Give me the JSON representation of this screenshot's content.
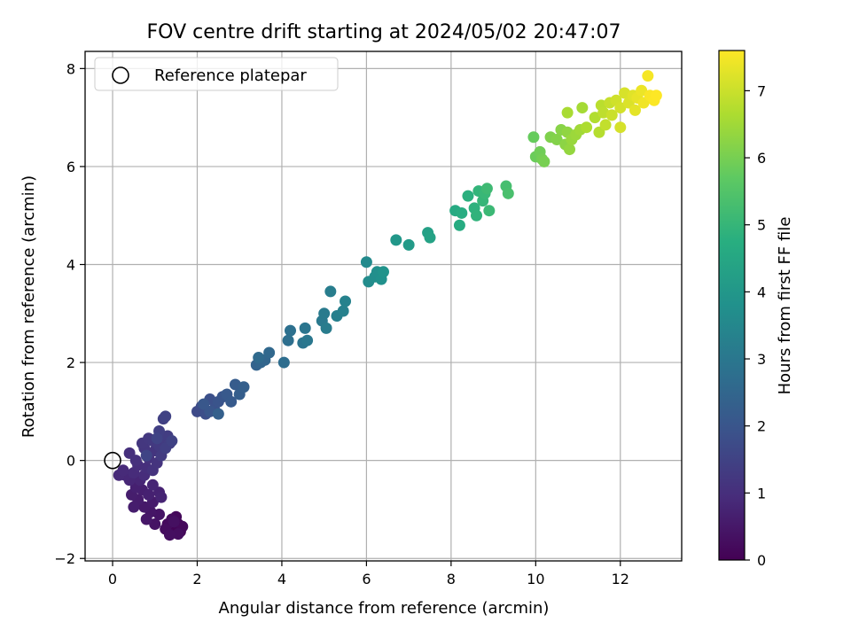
{
  "chart_data": {
    "type": "scatter",
    "title": "FOV centre drift starting at 2024/05/02 20:47:07",
    "xlabel": "Angular distance from reference (arcmin)",
    "ylabel": "Rotation from reference (arcmin)",
    "xlim": [
      -0.65,
      13.45
    ],
    "ylim": [
      -2.05,
      8.35
    ],
    "xticks": [
      0,
      2,
      4,
      6,
      8,
      10,
      12
    ],
    "yticks": [
      -2,
      0,
      2,
      4,
      6,
      8
    ],
    "grid": true,
    "legend": {
      "placement": "upper-left",
      "entries": [
        "Reference platepar"
      ]
    },
    "reference_point": {
      "x": 0,
      "y": 0
    },
    "colorbar": {
      "label": "Hours from first FF file",
      "colormap": "viridis",
      "range": [
        0,
        7.6
      ],
      "ticks": [
        0,
        1,
        2,
        3,
        4,
        5,
        6,
        7
      ]
    },
    "points": [
      {
        "x": 1.45,
        "y": -1.4,
        "c": 0.05
      },
      {
        "x": 1.55,
        "y": -1.3,
        "c": 0.1
      },
      {
        "x": 1.6,
        "y": -1.45,
        "c": 0.1
      },
      {
        "x": 1.35,
        "y": -1.5,
        "c": 0.12
      },
      {
        "x": 1.5,
        "y": -1.15,
        "c": 0.15
      },
      {
        "x": 1.65,
        "y": -1.35,
        "c": 0.18
      },
      {
        "x": 1.3,
        "y": -1.3,
        "c": 0.2
      },
      {
        "x": 1.4,
        "y": -1.2,
        "c": 0.22
      },
      {
        "x": 1.25,
        "y": -1.4,
        "c": 0.25
      },
      {
        "x": 1.55,
        "y": -1.5,
        "c": 0.28
      },
      {
        "x": 1.35,
        "y": -1.52,
        "c": 0.3
      },
      {
        "x": 1.45,
        "y": -1.25,
        "c": 0.32
      },
      {
        "x": 1.0,
        "y": -1.3,
        "c": 0.38
      },
      {
        "x": 1.1,
        "y": -1.1,
        "c": 0.42
      },
      {
        "x": 0.9,
        "y": -1.05,
        "c": 0.45
      },
      {
        "x": 0.8,
        "y": -1.2,
        "c": 0.48
      },
      {
        "x": 0.75,
        "y": -0.95,
        "c": 0.52
      },
      {
        "x": 0.95,
        "y": -0.85,
        "c": 0.55
      },
      {
        "x": 0.6,
        "y": -0.8,
        "c": 0.58
      },
      {
        "x": 0.5,
        "y": -0.95,
        "c": 0.6
      },
      {
        "x": 0.45,
        "y": -0.7,
        "c": 0.62
      },
      {
        "x": 0.7,
        "y": -0.6,
        "c": 0.65
      },
      {
        "x": 0.55,
        "y": -0.55,
        "c": 0.68
      },
      {
        "x": 0.85,
        "y": -0.7,
        "c": 0.7
      },
      {
        "x": 1.1,
        "y": -0.65,
        "c": 0.72
      },
      {
        "x": 1.15,
        "y": -0.75,
        "c": 0.75
      },
      {
        "x": 0.95,
        "y": -0.5,
        "c": 0.78
      },
      {
        "x": 0.65,
        "y": -0.4,
        "c": 0.8
      },
      {
        "x": 0.4,
        "y": -0.4,
        "c": 0.82
      },
      {
        "x": 0.3,
        "y": -0.3,
        "c": 0.85
      },
      {
        "x": 0.15,
        "y": -0.3,
        "c": 0.88
      },
      {
        "x": 0.25,
        "y": -0.2,
        "c": 0.9
      },
      {
        "x": 0.5,
        "y": -0.25,
        "c": 0.92
      },
      {
        "x": 0.75,
        "y": -0.3,
        "c": 0.95
      },
      {
        "x": 0.6,
        "y": -0.1,
        "c": 0.98
      },
      {
        "x": 0.8,
        "y": -0.15,
        "c": 1.0
      },
      {
        "x": 0.4,
        "y": 0.15,
        "c": 1.02
      },
      {
        "x": 0.55,
        "y": 0.0,
        "c": 1.05
      },
      {
        "x": 0.85,
        "y": 0.05,
        "c": 1.08
      },
      {
        "x": 0.95,
        "y": -0.2,
        "c": 1.1
      },
      {
        "x": 1.05,
        "y": -0.05,
        "c": 1.12
      },
      {
        "x": 1.0,
        "y": 0.2,
        "c": 1.15
      },
      {
        "x": 0.75,
        "y": 0.25,
        "c": 1.18
      },
      {
        "x": 0.7,
        "y": 0.35,
        "c": 1.2
      },
      {
        "x": 0.85,
        "y": 0.45,
        "c": 1.22
      },
      {
        "x": 0.95,
        "y": 0.4,
        "c": 1.25
      },
      {
        "x": 1.1,
        "y": 0.3,
        "c": 1.28
      },
      {
        "x": 1.15,
        "y": 0.1,
        "c": 1.3
      },
      {
        "x": 1.2,
        "y": 0.45,
        "c": 1.33
      },
      {
        "x": 1.3,
        "y": 0.5,
        "c": 1.36
      },
      {
        "x": 1.35,
        "y": 0.35,
        "c": 1.38
      },
      {
        "x": 1.25,
        "y": 0.25,
        "c": 1.4
      },
      {
        "x": 1.1,
        "y": 0.6,
        "c": 1.42
      },
      {
        "x": 1.2,
        "y": 0.85,
        "c": 1.45
      },
      {
        "x": 1.25,
        "y": 0.9,
        "c": 1.48
      },
      {
        "x": 1.4,
        "y": 0.4,
        "c": 1.5
      },
      {
        "x": 1.05,
        "y": 0.45,
        "c": 1.52
      },
      {
        "x": 0.8,
        "y": 0.1,
        "c": 1.55
      },
      {
        "x": 2.0,
        "y": 1.0,
        "c": 1.7
      },
      {
        "x": 2.1,
        "y": 1.1,
        "c": 1.75
      },
      {
        "x": 2.2,
        "y": 0.95,
        "c": 1.8
      },
      {
        "x": 2.3,
        "y": 1.25,
        "c": 1.85
      },
      {
        "x": 2.4,
        "y": 1.05,
        "c": 1.9
      },
      {
        "x": 2.5,
        "y": 1.2,
        "c": 1.95
      },
      {
        "x": 2.6,
        "y": 1.3,
        "c": 2.0
      },
      {
        "x": 2.3,
        "y": 1.0,
        "c": 2.02
      },
      {
        "x": 2.15,
        "y": 1.15,
        "c": 2.05
      },
      {
        "x": 2.7,
        "y": 1.35,
        "c": 2.1
      },
      {
        "x": 2.8,
        "y": 1.2,
        "c": 2.15
      },
      {
        "x": 2.9,
        "y": 1.55,
        "c": 2.2
      },
      {
        "x": 3.0,
        "y": 1.35,
        "c": 2.25
      },
      {
        "x": 3.1,
        "y": 1.5,
        "c": 2.3
      },
      {
        "x": 2.5,
        "y": 0.95,
        "c": 2.32
      },
      {
        "x": 3.4,
        "y": 1.95,
        "c": 2.4
      },
      {
        "x": 3.5,
        "y": 2.0,
        "c": 2.45
      },
      {
        "x": 3.6,
        "y": 2.05,
        "c": 2.5
      },
      {
        "x": 3.7,
        "y": 2.2,
        "c": 2.55
      },
      {
        "x": 3.45,
        "y": 2.1,
        "c": 2.6
      },
      {
        "x": 4.05,
        "y": 2.0,
        "c": 2.7
      },
      {
        "x": 4.15,
        "y": 2.45,
        "c": 2.75
      },
      {
        "x": 4.2,
        "y": 2.65,
        "c": 2.8
      },
      {
        "x": 4.5,
        "y": 2.4,
        "c": 2.9
      },
      {
        "x": 4.55,
        "y": 2.7,
        "c": 2.95
      },
      {
        "x": 4.6,
        "y": 2.45,
        "c": 3.0
      },
      {
        "x": 4.95,
        "y": 2.85,
        "c": 3.05
      },
      {
        "x": 5.0,
        "y": 3.0,
        "c": 3.1
      },
      {
        "x": 5.05,
        "y": 2.7,
        "c": 3.15
      },
      {
        "x": 5.15,
        "y": 3.45,
        "c": 3.2
      },
      {
        "x": 5.3,
        "y": 2.95,
        "c": 3.25
      },
      {
        "x": 5.45,
        "y": 3.05,
        "c": 3.3
      },
      {
        "x": 5.5,
        "y": 3.25,
        "c": 3.35
      },
      {
        "x": 6.0,
        "y": 4.05,
        "c": 3.6
      },
      {
        "x": 6.05,
        "y": 3.65,
        "c": 3.65
      },
      {
        "x": 6.2,
        "y": 3.75,
        "c": 3.7
      },
      {
        "x": 6.25,
        "y": 3.85,
        "c": 3.75
      },
      {
        "x": 6.35,
        "y": 3.7,
        "c": 3.8
      },
      {
        "x": 6.4,
        "y": 3.85,
        "c": 3.85
      },
      {
        "x": 6.7,
        "y": 4.5,
        "c": 4.0
      },
      {
        "x": 7.0,
        "y": 4.4,
        "c": 4.1
      },
      {
        "x": 7.45,
        "y": 4.65,
        "c": 4.3
      },
      {
        "x": 7.5,
        "y": 4.55,
        "c": 4.35
      },
      {
        "x": 8.1,
        "y": 5.1,
        "c": 4.6
      },
      {
        "x": 8.2,
        "y": 4.8,
        "c": 4.65
      },
      {
        "x": 8.25,
        "y": 5.05,
        "c": 4.7
      },
      {
        "x": 8.4,
        "y": 5.4,
        "c": 4.8
      },
      {
        "x": 8.55,
        "y": 5.15,
        "c": 4.85
      },
      {
        "x": 8.6,
        "y": 5.0,
        "c": 4.9
      },
      {
        "x": 8.65,
        "y": 5.5,
        "c": 4.95
      },
      {
        "x": 8.75,
        "y": 5.3,
        "c": 5.0
      },
      {
        "x": 8.8,
        "y": 5.45,
        "c": 5.05
      },
      {
        "x": 8.9,
        "y": 5.1,
        "c": 5.1
      },
      {
        "x": 8.85,
        "y": 5.55,
        "c": 5.15
      },
      {
        "x": 9.3,
        "y": 5.6,
        "c": 5.3
      },
      {
        "x": 9.35,
        "y": 5.45,
        "c": 5.35
      },
      {
        "x": 9.95,
        "y": 6.6,
        "c": 5.8
      },
      {
        "x": 10.0,
        "y": 6.2,
        "c": 5.85
      },
      {
        "x": 10.1,
        "y": 6.3,
        "c": 5.9
      },
      {
        "x": 10.15,
        "y": 6.15,
        "c": 5.95
      },
      {
        "x": 10.2,
        "y": 6.1,
        "c": 6.0
      },
      {
        "x": 10.35,
        "y": 6.6,
        "c": 6.1
      },
      {
        "x": 10.5,
        "y": 6.55,
        "c": 6.15
      },
      {
        "x": 10.6,
        "y": 6.75,
        "c": 6.2
      },
      {
        "x": 10.7,
        "y": 6.45,
        "c": 6.25
      },
      {
        "x": 10.75,
        "y": 6.7,
        "c": 6.3
      },
      {
        "x": 10.8,
        "y": 6.35,
        "c": 6.35
      },
      {
        "x": 10.85,
        "y": 6.55,
        "c": 6.4
      },
      {
        "x": 10.95,
        "y": 6.65,
        "c": 6.45
      },
      {
        "x": 11.05,
        "y": 6.75,
        "c": 6.5
      },
      {
        "x": 11.1,
        "y": 7.2,
        "c": 6.55
      },
      {
        "x": 10.75,
        "y": 7.1,
        "c": 6.6
      },
      {
        "x": 11.2,
        "y": 6.8,
        "c": 6.65
      },
      {
        "x": 11.4,
        "y": 7.0,
        "c": 6.7
      },
      {
        "x": 11.5,
        "y": 6.7,
        "c": 6.75
      },
      {
        "x": 11.55,
        "y": 7.25,
        "c": 6.8
      },
      {
        "x": 11.6,
        "y": 7.1,
        "c": 6.85
      },
      {
        "x": 11.65,
        "y": 6.85,
        "c": 6.9
      },
      {
        "x": 11.75,
        "y": 7.3,
        "c": 6.95
      },
      {
        "x": 11.8,
        "y": 7.05,
        "c": 7.0
      },
      {
        "x": 11.9,
        "y": 7.35,
        "c": 7.05
      },
      {
        "x": 12.0,
        "y": 7.2,
        "c": 7.1
      },
      {
        "x": 12.0,
        "y": 6.8,
        "c": 7.12
      },
      {
        "x": 12.1,
        "y": 7.5,
        "c": 7.15
      },
      {
        "x": 12.2,
        "y": 7.3,
        "c": 7.2
      },
      {
        "x": 12.3,
        "y": 7.45,
        "c": 7.25
      },
      {
        "x": 12.35,
        "y": 7.15,
        "c": 7.3
      },
      {
        "x": 12.4,
        "y": 7.4,
        "c": 7.35
      },
      {
        "x": 12.5,
        "y": 7.55,
        "c": 7.4
      },
      {
        "x": 12.55,
        "y": 7.3,
        "c": 7.45
      },
      {
        "x": 12.65,
        "y": 7.85,
        "c": 7.5
      },
      {
        "x": 12.7,
        "y": 7.45,
        "c": 7.55
      },
      {
        "x": 12.8,
        "y": 7.35,
        "c": 7.58
      },
      {
        "x": 12.85,
        "y": 7.45,
        "c": 7.6
      }
    ]
  }
}
